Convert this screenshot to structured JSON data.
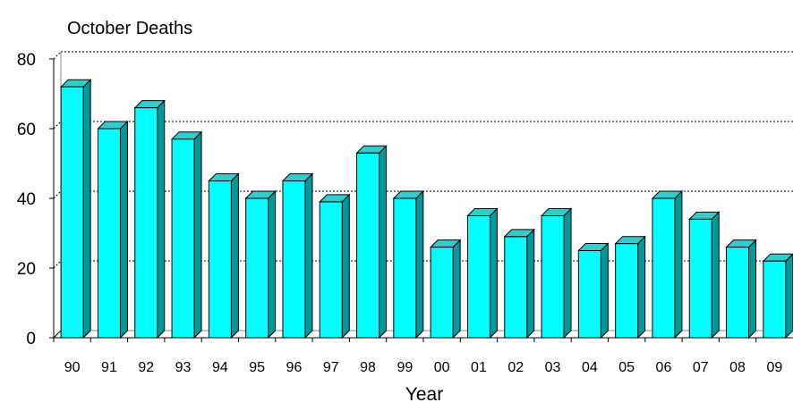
{
  "chart_data": {
    "type": "bar",
    "title": "October Deaths",
    "xlabel": "Year",
    "ylabel": "",
    "ylim": [
      0,
      80
    ],
    "yticks": [
      0,
      20,
      40,
      60,
      80
    ],
    "grid": true,
    "three_d": true,
    "categories": [
      "90",
      "91",
      "92",
      "93",
      "94",
      "95",
      "96",
      "97",
      "98",
      "99",
      "00",
      "01",
      "02",
      "03",
      "04",
      "05",
      "06",
      "07",
      "08",
      "09"
    ],
    "values": [
      72,
      60,
      66,
      57,
      45,
      40,
      45,
      39,
      53,
      40,
      26,
      35,
      29,
      35,
      25,
      27,
      40,
      34,
      26,
      22
    ],
    "colors": {
      "bar_front": "#00FFFF",
      "bar_top": "#33CCCC",
      "bar_side": "#009999",
      "outline": "#000000",
      "grid": "#000000"
    }
  }
}
